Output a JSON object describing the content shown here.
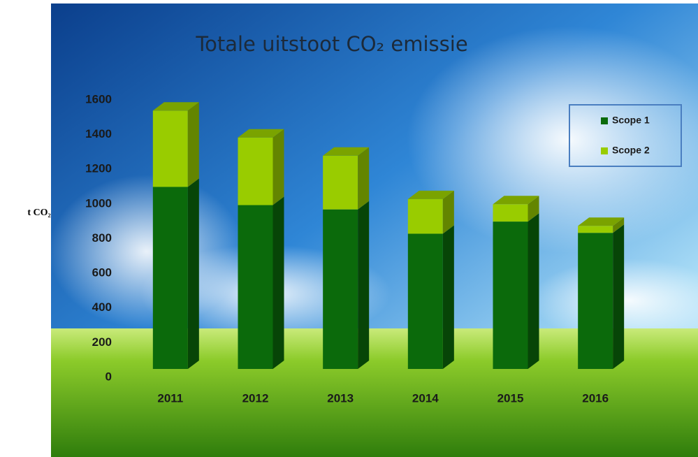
{
  "chart_data": {
    "type": "stacked-bar-3d",
    "title": "Totale uitstoot CO₂ emissie",
    "y_label": "t CO₂",
    "categories": [
      "2011",
      "2012",
      "2013",
      "2014",
      "2015",
      "2016"
    ],
    "series": [
      {
        "name": "Scope 1",
        "color": "#0b6a0b",
        "values": [
          1050,
          945,
          920,
          780,
          850,
          785
        ]
      },
      {
        "name": "Scope 2",
        "color": "#99cc00",
        "values": [
          440,
          390,
          310,
          200,
          100,
          40
        ]
      }
    ],
    "ylim": [
      0,
      1600
    ],
    "yticks": [
      0,
      200,
      400,
      600,
      800,
      1000,
      1200,
      1400,
      1600
    ],
    "legend": "top-right"
  }
}
